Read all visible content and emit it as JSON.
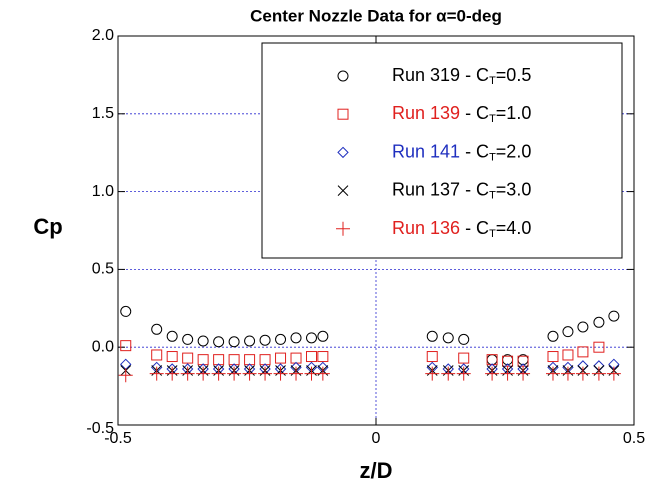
{
  "chart_data": {
    "type": "scatter",
    "title": "Center Nozzle Data for α=0-deg",
    "x_label": "z/D",
    "y_label": "Cp",
    "xlim": [
      -0.5,
      0.5
    ],
    "ylim": [
      -0.5,
      2.0
    ],
    "xticks": [
      -0.5,
      0,
      0.5
    ],
    "yticks": [
      -0.5,
      {
        "value": 0,
        "label": "0.0"
      },
      0.5,
      {
        "value": 1,
        "label": "1.0"
      },
      1.5,
      {
        "value": 2,
        "label": "2.0"
      }
    ],
    "grid": true,
    "legend": "upper right",
    "x": [
      -0.485,
      -0.425,
      -0.395,
      -0.365,
      -0.335,
      -0.305,
      -0.275,
      -0.245,
      -0.215,
      -0.185,
      -0.155,
      -0.125,
      -0.103,
      0.109,
      0.14,
      0.17,
      0.225,
      0.255,
      0.285,
      0.343,
      0.372,
      0.401,
      0.432,
      0.461
    ],
    "series": [
      {
        "name": "Run 319 - CT=0.5",
        "color": "#000000",
        "marker": "circle",
        "values": [
          0.23,
          0.115,
          0.07,
          0.05,
          0.04,
          0.035,
          0.035,
          0.04,
          0.045,
          0.05,
          0.06,
          0.06,
          0.07,
          0.07,
          0.06,
          0.05,
          -0.08,
          -0.08,
          -0.08,
          0.07,
          0.1,
          0.13,
          0.16,
          0.2
        ]
      },
      {
        "name": "Run 139 - CT=1.0",
        "color": "#e0201e",
        "marker": "square",
        "values": [
          0.01,
          -0.05,
          -0.06,
          -0.07,
          -0.08,
          -0.08,
          -0.08,
          -0.08,
          -0.08,
          -0.07,
          -0.07,
          -0.06,
          -0.06,
          -0.06,
          null,
          -0.07,
          -0.08,
          -0.09,
          -0.09,
          -0.06,
          -0.05,
          -0.03,
          0.0,
          null
        ]
      },
      {
        "name": "Run 141 - CT=2.0",
        "color": "#1f2fbf",
        "marker": "diamond",
        "values": [
          -0.11,
          -0.13,
          -0.14,
          -0.14,
          -0.14,
          -0.14,
          -0.14,
          -0.14,
          -0.14,
          -0.14,
          -0.13,
          -0.13,
          -0.13,
          -0.13,
          -0.14,
          -0.14,
          -0.14,
          -0.14,
          -0.14,
          -0.13,
          -0.13,
          -0.12,
          -0.12,
          -0.11
        ]
      },
      {
        "name": "Run 137 - CT=3.0",
        "color": "#000000",
        "marker": "cross",
        "values": [
          -0.15,
          -0.15,
          -0.15,
          -0.15,
          -0.15,
          -0.15,
          -0.15,
          -0.15,
          -0.15,
          -0.15,
          -0.15,
          -0.15,
          -0.15,
          -0.15,
          -0.15,
          -0.15,
          -0.15,
          -0.15,
          -0.15,
          -0.15,
          -0.15,
          -0.15,
          -0.15,
          -0.15
        ]
      },
      {
        "name": "Run 136 - CT=4.0",
        "color": "#e0201e",
        "marker": "plus",
        "values": [
          -0.18,
          -0.17,
          -0.17,
          -0.17,
          -0.17,
          -0.17,
          -0.17,
          -0.17,
          -0.17,
          -0.17,
          -0.17,
          -0.17,
          -0.17,
          -0.17,
          -0.17,
          -0.17,
          -0.17,
          -0.17,
          -0.17,
          -0.17,
          -0.17,
          -0.17,
          -0.17,
          -0.17
        ]
      }
    ]
  }
}
